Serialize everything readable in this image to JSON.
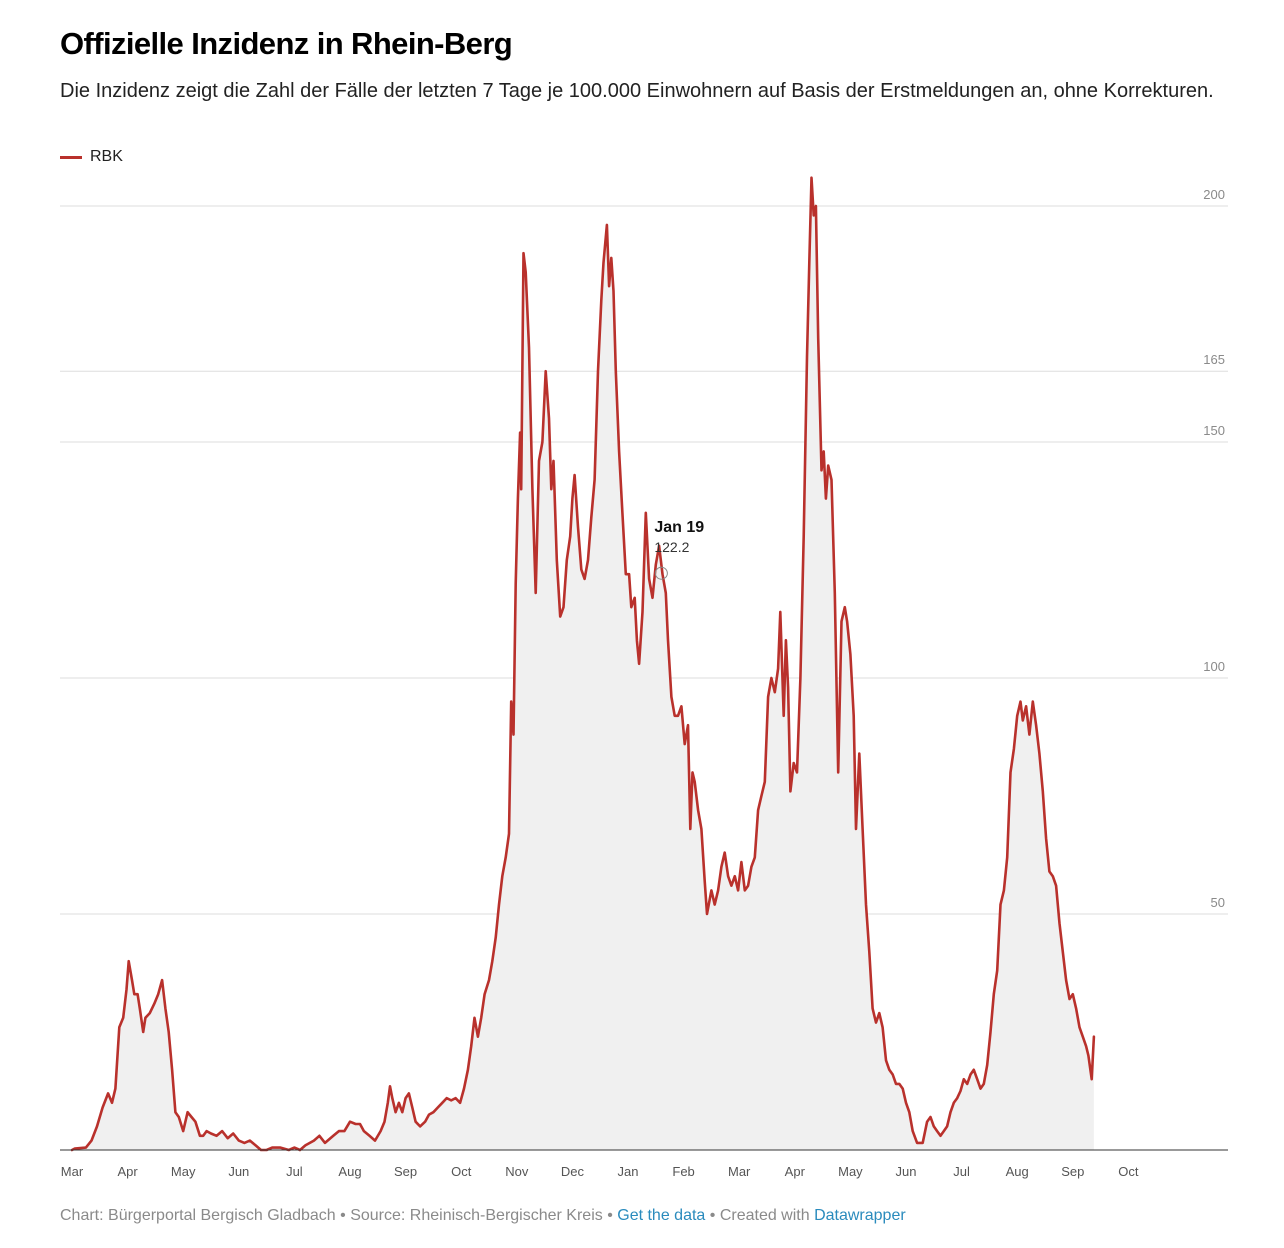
{
  "title": "Offizielle Inzidenz in Rhein-Berg",
  "subtitle": "Die Inzidenz zeigt die Zahl der Fälle der letzten 7 Tage je 100.000 Einwohnern auf Basis der Erstmeldungen an, ohne Korrekturen.",
  "colors": {
    "line": "#b9312c",
    "area": "#f0f0f0",
    "grid": "#dddddd",
    "link": "#2a8bbd"
  },
  "footer": {
    "chart_by": "Chart: Bürgerportal Bergisch Gladbach",
    "sep1": " • ",
    "source": "Source: Rheinisch-Bergischer Kreis",
    "sep2": " • ",
    "get_data": "Get the data",
    "sep3": " • ",
    "created_with": "Created with ",
    "datawrapper": "Datawrapper"
  },
  "chart_data": {
    "type": "area",
    "title": "Offizielle Inzidenz in Rhein-Berg",
    "xlabel": "",
    "ylabel": "",
    "ylim": [
      0,
      200
    ],
    "y_ticks": [
      50,
      100,
      150,
      165,
      200
    ],
    "legend": {
      "position": "top-left"
    },
    "grid": true,
    "x_ticks": [
      {
        "label": "Mar",
        "month": 0
      },
      {
        "label": "Apr",
        "month": 1
      },
      {
        "label": "May",
        "month": 2
      },
      {
        "label": "Jun",
        "month": 3
      },
      {
        "label": "Jul",
        "month": 4
      },
      {
        "label": "Aug",
        "month": 5
      },
      {
        "label": "Sep",
        "month": 6
      },
      {
        "label": "Oct",
        "month": 7
      },
      {
        "label": "Nov",
        "month": 8
      },
      {
        "label": "Dec",
        "month": 9
      },
      {
        "label": "Jan",
        "month": 10
      },
      {
        "label": "Feb",
        "month": 11
      },
      {
        "label": "Mar",
        "month": 12
      },
      {
        "label": "Apr",
        "month": 13
      },
      {
        "label": "May",
        "month": 14
      },
      {
        "label": "Jun",
        "month": 15
      },
      {
        "label": "Jul",
        "month": 16
      },
      {
        "label": "Aug",
        "month": 17
      },
      {
        "label": "Sep",
        "month": 18
      },
      {
        "label": "Oct",
        "month": 19
      }
    ],
    "tooltip": {
      "date_label": "Jan 19",
      "value_label": "122.2",
      "month": 10.6,
      "value": 122.2
    },
    "series": [
      {
        "name": "RBK",
        "points": [
          [
            0.0,
            0
          ],
          [
            0.05,
            0.3
          ],
          [
            0.25,
            0.5
          ],
          [
            0.35,
            2
          ],
          [
            0.45,
            5
          ],
          [
            0.55,
            9
          ],
          [
            0.65,
            12
          ],
          [
            0.72,
            10
          ],
          [
            0.78,
            13
          ],
          [
            0.85,
            26
          ],
          [
            0.92,
            28
          ],
          [
            0.98,
            34
          ],
          [
            1.02,
            40
          ],
          [
            1.08,
            36
          ],
          [
            1.12,
            33
          ],
          [
            1.18,
            33
          ],
          [
            1.22,
            30
          ],
          [
            1.28,
            25
          ],
          [
            1.32,
            28
          ],
          [
            1.4,
            29
          ],
          [
            1.48,
            31
          ],
          [
            1.55,
            33
          ],
          [
            1.62,
            36
          ],
          [
            1.68,
            30
          ],
          [
            1.74,
            25
          ],
          [
            1.8,
            17
          ],
          [
            1.86,
            8
          ],
          [
            1.92,
            7
          ],
          [
            2.0,
            4
          ],
          [
            2.08,
            8
          ],
          [
            2.15,
            7
          ],
          [
            2.22,
            6
          ],
          [
            2.3,
            3
          ],
          [
            2.36,
            3
          ],
          [
            2.42,
            4
          ],
          [
            2.5,
            3.5
          ],
          [
            2.6,
            3
          ],
          [
            2.7,
            4
          ],
          [
            2.8,
            2.5
          ],
          [
            2.9,
            3.5
          ],
          [
            3.0,
            2
          ],
          [
            3.1,
            1.5
          ],
          [
            3.2,
            2
          ],
          [
            3.3,
            1
          ],
          [
            3.4,
            0
          ],
          [
            3.5,
            0
          ],
          [
            3.6,
            0.5
          ],
          [
            3.75,
            0.5
          ],
          [
            3.9,
            0
          ],
          [
            4.0,
            0.5
          ],
          [
            4.1,
            0
          ],
          [
            4.2,
            1
          ],
          [
            4.35,
            2
          ],
          [
            4.45,
            3
          ],
          [
            4.55,
            1.5
          ],
          [
            4.7,
            3
          ],
          [
            4.8,
            4
          ],
          [
            4.9,
            4
          ],
          [
            5.0,
            6
          ],
          [
            5.1,
            5.5
          ],
          [
            5.18,
            5.5
          ],
          [
            5.25,
            4
          ],
          [
            5.35,
            3
          ],
          [
            5.45,
            2
          ],
          [
            5.55,
            4
          ],
          [
            5.62,
            6
          ],
          [
            5.68,
            10
          ],
          [
            5.72,
            13.5
          ],
          [
            5.76,
            11
          ],
          [
            5.82,
            8
          ],
          [
            5.88,
            10
          ],
          [
            5.94,
            8
          ],
          [
            6.0,
            11
          ],
          [
            6.06,
            12
          ],
          [
            6.12,
            9
          ],
          [
            6.18,
            6
          ],
          [
            6.26,
            5
          ],
          [
            6.35,
            6
          ],
          [
            6.42,
            7.5
          ],
          [
            6.5,
            8
          ],
          [
            6.58,
            9
          ],
          [
            6.66,
            10
          ],
          [
            6.74,
            11
          ],
          [
            6.82,
            10.5
          ],
          [
            6.9,
            11
          ],
          [
            6.98,
            10
          ],
          [
            7.05,
            13
          ],
          [
            7.12,
            17
          ],
          [
            7.18,
            22
          ],
          [
            7.24,
            28
          ],
          [
            7.3,
            24
          ],
          [
            7.36,
            28
          ],
          [
            7.42,
            33
          ],
          [
            7.5,
            36
          ],
          [
            7.56,
            40
          ],
          [
            7.62,
            45
          ],
          [
            7.68,
            52
          ],
          [
            7.74,
            58
          ],
          [
            7.8,
            62
          ],
          [
            7.86,
            67
          ],
          [
            7.9,
            95
          ],
          [
            7.94,
            88
          ],
          [
            7.98,
            120
          ],
          [
            8.02,
            138
          ],
          [
            8.06,
            152
          ],
          [
            8.08,
            140
          ],
          [
            8.12,
            190
          ],
          [
            8.16,
            186
          ],
          [
            8.22,
            170
          ],
          [
            8.28,
            140
          ],
          [
            8.34,
            118
          ],
          [
            8.4,
            146
          ],
          [
            8.46,
            150
          ],
          [
            8.52,
            165
          ],
          [
            8.58,
            155
          ],
          [
            8.62,
            140
          ],
          [
            8.66,
            146
          ],
          [
            8.72,
            125
          ],
          [
            8.78,
            113
          ],
          [
            8.84,
            115
          ],
          [
            8.9,
            125
          ],
          [
            8.96,
            130
          ],
          [
            9.0,
            138
          ],
          [
            9.04,
            143
          ],
          [
            9.1,
            132
          ],
          [
            9.16,
            123
          ],
          [
            9.22,
            121
          ],
          [
            9.28,
            125
          ],
          [
            9.34,
            134
          ],
          [
            9.4,
            142
          ],
          [
            9.46,
            165
          ],
          [
            9.52,
            180
          ],
          [
            9.56,
            188
          ],
          [
            9.62,
            196
          ],
          [
            9.66,
            183
          ],
          [
            9.7,
            189
          ],
          [
            9.74,
            182
          ],
          [
            9.78,
            165
          ],
          [
            9.84,
            148
          ],
          [
            9.9,
            135
          ],
          [
            9.96,
            122
          ],
          [
            10.02,
            122
          ],
          [
            10.06,
            115
          ],
          [
            10.12,
            117
          ],
          [
            10.16,
            108
          ],
          [
            10.2,
            103
          ],
          [
            10.26,
            114
          ],
          [
            10.32,
            135
          ],
          [
            10.38,
            121
          ],
          [
            10.44,
            117
          ],
          [
            10.5,
            124
          ],
          [
            10.56,
            128
          ],
          [
            10.62,
            122
          ],
          [
            10.68,
            118
          ],
          [
            10.72,
            108
          ],
          [
            10.78,
            96
          ],
          [
            10.84,
            92
          ],
          [
            10.9,
            92
          ],
          [
            10.96,
            94
          ],
          [
            11.02,
            86
          ],
          [
            11.08,
            90
          ],
          [
            11.12,
            68
          ],
          [
            11.16,
            80
          ],
          [
            11.2,
            78
          ],
          [
            11.26,
            72
          ],
          [
            11.32,
            68
          ],
          [
            11.38,
            57
          ],
          [
            11.42,
            50
          ],
          [
            11.5,
            55
          ],
          [
            11.56,
            52
          ],
          [
            11.62,
            55
          ],
          [
            11.68,
            60
          ],
          [
            11.74,
            63
          ],
          [
            11.8,
            58
          ],
          [
            11.86,
            56
          ],
          [
            11.92,
            58
          ],
          [
            11.98,
            55
          ],
          [
            12.04,
            61
          ],
          [
            12.1,
            55
          ],
          [
            12.16,
            56
          ],
          [
            12.22,
            60
          ],
          [
            12.28,
            62
          ],
          [
            12.34,
            72
          ],
          [
            12.4,
            75
          ],
          [
            12.46,
            78
          ],
          [
            12.52,
            96
          ],
          [
            12.58,
            100
          ],
          [
            12.64,
            97
          ],
          [
            12.7,
            102
          ],
          [
            12.74,
            114
          ],
          [
            12.8,
            92
          ],
          [
            12.84,
            108
          ],
          [
            12.88,
            98
          ],
          [
            12.92,
            76
          ],
          [
            12.98,
            82
          ],
          [
            13.04,
            80
          ],
          [
            13.1,
            100
          ],
          [
            13.16,
            130
          ],
          [
            13.22,
            168
          ],
          [
            13.26,
            188
          ],
          [
            13.3,
            206
          ],
          [
            13.34,
            198
          ],
          [
            13.38,
            200
          ],
          [
            13.42,
            172
          ],
          [
            13.48,
            144
          ],
          [
            13.52,
            148
          ],
          [
            13.56,
            138
          ],
          [
            13.6,
            145
          ],
          [
            13.66,
            142
          ],
          [
            13.72,
            118
          ],
          [
            13.78,
            80
          ],
          [
            13.84,
            112
          ],
          [
            13.9,
            115
          ],
          [
            13.94,
            112
          ],
          [
            14.0,
            105
          ],
          [
            14.06,
            92
          ],
          [
            14.1,
            68
          ],
          [
            14.16,
            84
          ],
          [
            14.22,
            68
          ],
          [
            14.28,
            52
          ],
          [
            14.34,
            42
          ],
          [
            14.4,
            30
          ],
          [
            14.46,
            27
          ],
          [
            14.52,
            29
          ],
          [
            14.58,
            26
          ],
          [
            14.64,
            19
          ],
          [
            14.7,
            17
          ],
          [
            14.76,
            16
          ],
          [
            14.82,
            14
          ],
          [
            14.88,
            14
          ],
          [
            14.94,
            13
          ],
          [
            15.0,
            10
          ],
          [
            15.06,
            8
          ],
          [
            15.12,
            4
          ],
          [
            15.2,
            1.5
          ],
          [
            15.3,
            1.5
          ],
          [
            15.38,
            6
          ],
          [
            15.44,
            7
          ],
          [
            15.5,
            5
          ],
          [
            15.56,
            4
          ],
          [
            15.62,
            3
          ],
          [
            15.68,
            4
          ],
          [
            15.74,
            5
          ],
          [
            15.8,
            8
          ],
          [
            15.86,
            10
          ],
          [
            15.92,
            11
          ],
          [
            15.98,
            12.5
          ],
          [
            16.04,
            15
          ],
          [
            16.1,
            14
          ],
          [
            16.16,
            16
          ],
          [
            16.22,
            17
          ],
          [
            16.28,
            15
          ],
          [
            16.34,
            13
          ],
          [
            16.4,
            14
          ],
          [
            16.46,
            18
          ],
          [
            16.52,
            25
          ],
          [
            16.58,
            33
          ],
          [
            16.64,
            38
          ],
          [
            16.7,
            52
          ],
          [
            16.76,
            55
          ],
          [
            16.82,
            62
          ],
          [
            16.88,
            80
          ],
          [
            16.94,
            85
          ],
          [
            17.0,
            92
          ],
          [
            17.06,
            95
          ],
          [
            17.1,
            91
          ],
          [
            17.16,
            94
          ],
          [
            17.22,
            88
          ],
          [
            17.28,
            95
          ],
          [
            17.34,
            90
          ],
          [
            17.4,
            84
          ],
          [
            17.46,
            76
          ],
          [
            17.52,
            66
          ],
          [
            17.58,
            59
          ],
          [
            17.64,
            58
          ],
          [
            17.7,
            56
          ],
          [
            17.76,
            48
          ],
          [
            17.82,
            42
          ],
          [
            17.88,
            36
          ],
          [
            17.94,
            32
          ],
          [
            18.0,
            33
          ],
          [
            18.06,
            30
          ],
          [
            18.12,
            26
          ],
          [
            18.18,
            24
          ],
          [
            18.24,
            22
          ],
          [
            18.28,
            20
          ],
          [
            18.34,
            15
          ],
          [
            18.38,
            24
          ]
        ]
      }
    ]
  }
}
